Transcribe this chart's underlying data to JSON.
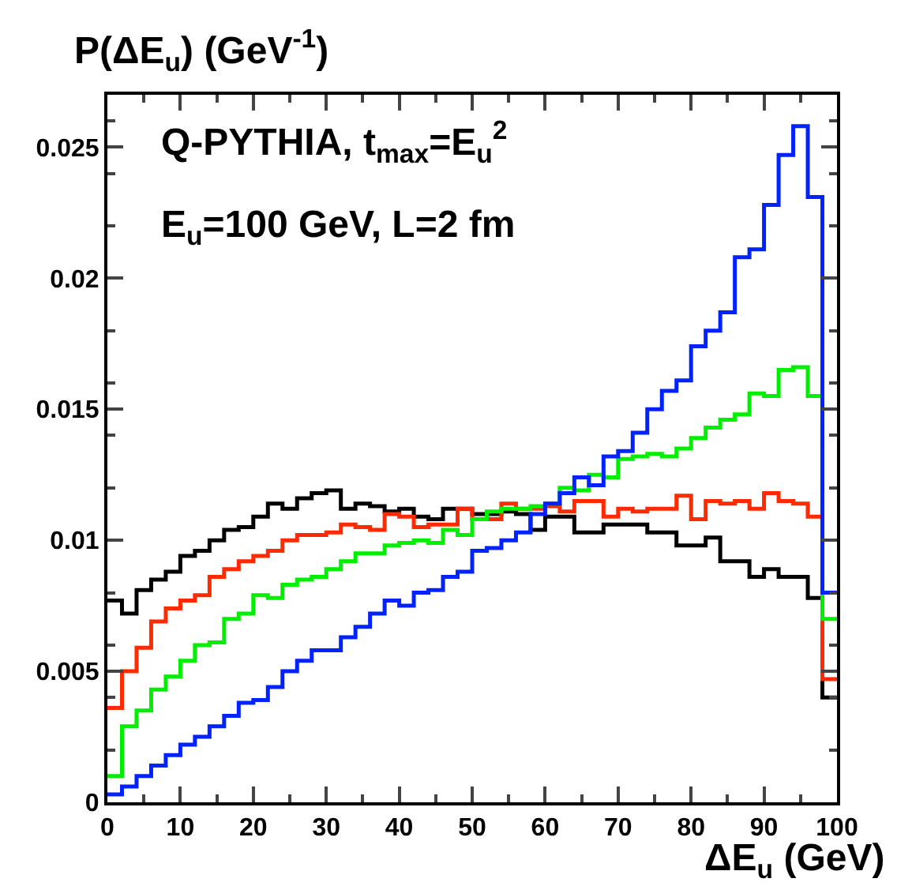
{
  "chart_data": {
    "type": "histogram",
    "ylabel": "P(ΔE$_{u}$) (GeV$^{-1}$)",
    "xlabel": "ΔE$_{u}$ (GeV)",
    "annotations": [
      "Q-PYTHIA, t$_{max}$=E$_{u}$$^{2}$",
      "E$_{u}$=100 GeV, L=2 fm"
    ],
    "bins": [
      0,
      2,
      4,
      6,
      8,
      10,
      12,
      14,
      16,
      18,
      20,
      22,
      24,
      26,
      28,
      30,
      32,
      34,
      36,
      38,
      40,
      42,
      44,
      46,
      48,
      50,
      52,
      54,
      56,
      58,
      60,
      62,
      64,
      66,
      68,
      70,
      72,
      74,
      76,
      78,
      80,
      82,
      84,
      86,
      88,
      90,
      92,
      94,
      96,
      98,
      100
    ],
    "series": [
      {
        "color": "#000000",
        "values": [
          0.0077,
          0.0072,
          0.0081,
          0.0085,
          0.0088,
          0.0094,
          0.0096,
          0.01,
          0.0104,
          0.0105,
          0.0109,
          0.0114,
          0.0112,
          0.0116,
          0.0118,
          0.0119,
          0.0112,
          0.0114,
          0.0113,
          0.0111,
          0.0112,
          0.0109,
          0.0108,
          0.0112,
          0.0112,
          0.011,
          0.011,
          0.0111,
          0.011,
          0.0104,
          0.0109,
          0.0109,
          0.0103,
          0.0103,
          0.0106,
          0.0106,
          0.0106,
          0.0103,
          0.0103,
          0.0098,
          0.0098,
          0.0101,
          0.0092,
          0.0092,
          0.0086,
          0.0089,
          0.0086,
          0.0086,
          0.0078,
          0.004
        ]
      },
      {
        "color": "#ff2a00",
        "values": [
          0.0036,
          0.005,
          0.0059,
          0.0069,
          0.0074,
          0.0077,
          0.0079,
          0.0086,
          0.0089,
          0.0092,
          0.0094,
          0.0096,
          0.01,
          0.0102,
          0.0102,
          0.0103,
          0.0106,
          0.0105,
          0.0104,
          0.011,
          0.0109,
          0.0105,
          0.0106,
          0.0106,
          0.0112,
          0.0108,
          0.0108,
          0.0114,
          0.0112,
          0.0112,
          0.0113,
          0.0111,
          0.0115,
          0.0115,
          0.0109,
          0.0112,
          0.0111,
          0.0112,
          0.0112,
          0.0117,
          0.0108,
          0.0115,
          0.0114,
          0.0115,
          0.0112,
          0.0118,
          0.0115,
          0.0114,
          0.0109,
          0.0047
        ]
      },
      {
        "color": "#00ee00",
        "values": [
          0.001,
          0.0029,
          0.0035,
          0.0043,
          0.0048,
          0.0054,
          0.006,
          0.0061,
          0.007,
          0.0072,
          0.0079,
          0.0078,
          0.0083,
          0.0085,
          0.0086,
          0.0089,
          0.0092,
          0.0095,
          0.0095,
          0.0098,
          0.0099,
          0.01,
          0.0099,
          0.0104,
          0.0102,
          0.0108,
          0.0111,
          0.0112,
          0.0112,
          0.0113,
          0.0114,
          0.012,
          0.0119,
          0.0125,
          0.0124,
          0.0131,
          0.0132,
          0.0133,
          0.0132,
          0.0135,
          0.0139,
          0.0143,
          0.0146,
          0.0148,
          0.0156,
          0.0155,
          0.0165,
          0.0166,
          0.0155,
          0.007
        ]
      },
      {
        "color": "#0022ff",
        "values": [
          0.0003,
          0.0006,
          0.001,
          0.0014,
          0.0018,
          0.0022,
          0.0025,
          0.0029,
          0.0033,
          0.0038,
          0.0039,
          0.0044,
          0.005,
          0.0054,
          0.0058,
          0.0058,
          0.0063,
          0.0067,
          0.0072,
          0.0077,
          0.0075,
          0.008,
          0.0081,
          0.0086,
          0.0088,
          0.0096,
          0.0097,
          0.01,
          0.0103,
          0.011,
          0.0114,
          0.0118,
          0.0124,
          0.0121,
          0.0132,
          0.0134,
          0.0141,
          0.015,
          0.0157,
          0.0161,
          0.0174,
          0.018,
          0.0187,
          0.0208,
          0.0211,
          0.0228,
          0.0247,
          0.0258,
          0.0231,
          0.008
        ]
      }
    ],
    "xlim": [
      0,
      100
    ],
    "xticks": [
      0,
      10,
      20,
      30,
      40,
      50,
      60,
      70,
      80,
      90,
      100
    ],
    "ylim": [
      0,
      0.027
    ],
    "yticks": [
      0,
      0.005,
      0.01,
      0.015,
      0.02,
      0.025
    ]
  }
}
